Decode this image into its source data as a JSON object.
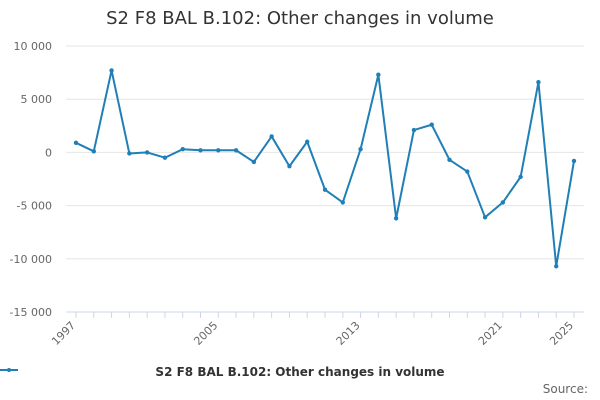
{
  "chart_data": {
    "type": "line",
    "title": "S2 F8 BAL B.102: Other changes in volume",
    "xlabel": "",
    "ylabel": "",
    "x": [
      1997,
      1998,
      1999,
      2000,
      2001,
      2002,
      2003,
      2004,
      2005,
      2006,
      2007,
      2008,
      2009,
      2010,
      2011,
      2012,
      2013,
      2014,
      2015,
      2016,
      2017,
      2018,
      2019,
      2020,
      2021,
      2022,
      2023,
      2024,
      2025
    ],
    "series": [
      {
        "name": "S2 F8 BAL B.102: Other changes in volume",
        "color": "#1f7fb6",
        "values": [
          900,
          100,
          7700,
          -100,
          0,
          -500,
          300,
          200,
          200,
          200,
          -900,
          1500,
          -1300,
          1000,
          -3500,
          -4700,
          300,
          7300,
          -6200,
          2100,
          2600,
          -700,
          -1800,
          -6100,
          -4700,
          -2300,
          6600,
          -10700,
          -800
        ]
      }
    ],
    "x_ticks": [
      {
        "value": 1997,
        "label": "1997"
      },
      {
        "value": 2005,
        "label": "2005"
      },
      {
        "value": 2013,
        "label": "2013"
      },
      {
        "value": 2021,
        "label": "2021"
      },
      {
        "value": 2025,
        "label": "2025"
      }
    ],
    "y_ticks": [
      {
        "value": 10000,
        "label": "10 000"
      },
      {
        "value": 5000,
        "label": "5 000"
      },
      {
        "value": 0,
        "label": "0"
      },
      {
        "value": -5000,
        "label": "-5 000"
      },
      {
        "value": -10000,
        "label": "-10 000"
      },
      {
        "value": -15000,
        "label": "-15 000"
      }
    ],
    "xlim": [
      1997,
      2025
    ],
    "ylim": [
      -15000,
      10000
    ],
    "grid": true,
    "legend_position": "bottom-center"
  },
  "credit": "Source:"
}
